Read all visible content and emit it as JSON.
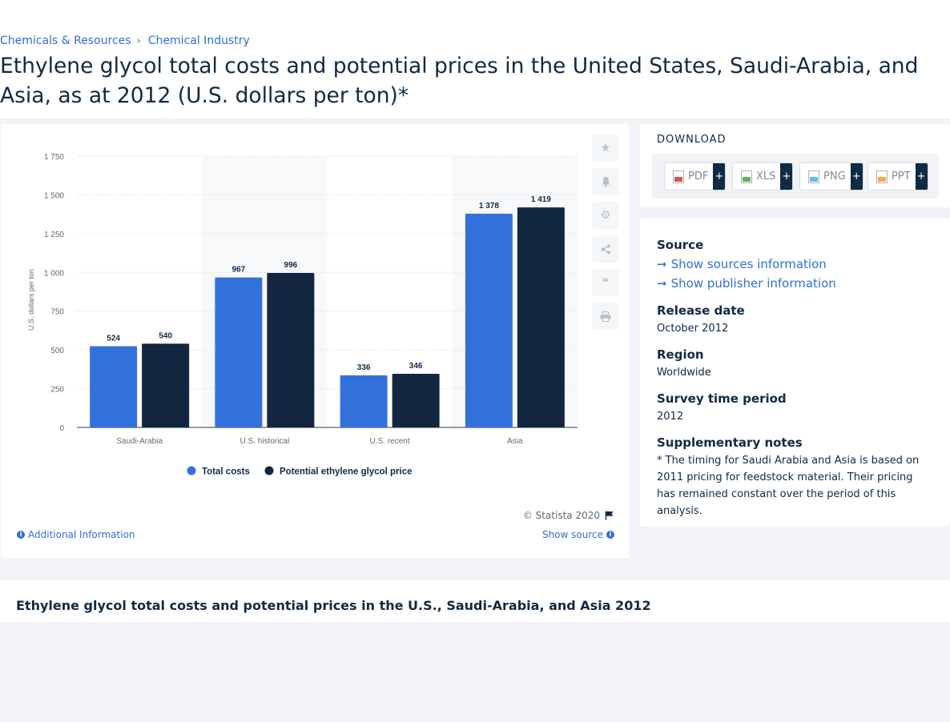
{
  "breadcrumb": {
    "items": [
      "Chemicals & Resources",
      "Chemical Industry"
    ],
    "separator": "›"
  },
  "page_title": "Ethylene glycol total costs and potential prices in the United States, Saudi-Arabia, and Asia, as at 2012 (U.S. dollars per ton)*",
  "chart_data": {
    "type": "bar",
    "categories": [
      "Saudi-Arabia",
      "U.S. historical",
      "U.S. recent",
      "Asia"
    ],
    "series": [
      {
        "name": "Total costs",
        "values": [
          524,
          967,
          336,
          1378
        ],
        "labels": [
          "524",
          "967",
          "336",
          "1 378"
        ],
        "color": "#3271dc"
      },
      {
        "name": "Potential ethylene glycol price",
        "values": [
          540,
          996,
          346,
          1419
        ],
        "labels": [
          "540",
          "996",
          "346",
          "1 419"
        ],
        "color": "#13263f"
      }
    ],
    "ylabel": "U.S. dollars per ton",
    "ylim": [
      0,
      1750
    ],
    "yticks": [
      0,
      250,
      500,
      750,
      1000,
      1250,
      1500,
      1750
    ],
    "ytick_labels": [
      "0",
      "250",
      "500",
      "750",
      "1 000",
      "1 250",
      "1 500",
      "1 750"
    ],
    "grid": "dotted horizontal",
    "legend": "bottom-center",
    "alternating_bands": true
  },
  "chart_tools": [
    "star-icon",
    "bell-icon",
    "gear-icon",
    "share-icon",
    "quote-icon",
    "print-icon"
  ],
  "chart_footer": {
    "copyright": "© Statista 2020",
    "additional_info": "Additional Information",
    "show_source": "Show source"
  },
  "download": {
    "title": "DOWNLOAD",
    "buttons": [
      {
        "label": "PDF",
        "icon": "pdf-file-icon",
        "color": "#d9534f"
      },
      {
        "label": "XLS",
        "icon": "xls-file-icon",
        "color": "#5cb85c"
      },
      {
        "label": "PNG",
        "icon": "png-file-icon",
        "color": "#5bc0de"
      },
      {
        "label": "PPT",
        "icon": "ppt-file-icon",
        "color": "#f0ad4e"
      }
    ],
    "plus": "+"
  },
  "info": {
    "source_label": "Source",
    "show_sources": "Show sources information",
    "show_publisher": "Show publisher information",
    "release_label": "Release date",
    "release_value": "October 2012",
    "region_label": "Region",
    "region_value": "Worldwide",
    "survey_label": "Survey time period",
    "survey_value": "2012",
    "notes_label": "Supplementary notes",
    "notes_value": "* The timing for Saudi Arabia and Asia is based on 2011 pricing for feedstock material. Their pricing has remained constant over the period of this analysis."
  },
  "bottom_title": "Ethylene glycol total costs and potential prices in the U.S., Saudi-Arabia, and Asia 2012"
}
